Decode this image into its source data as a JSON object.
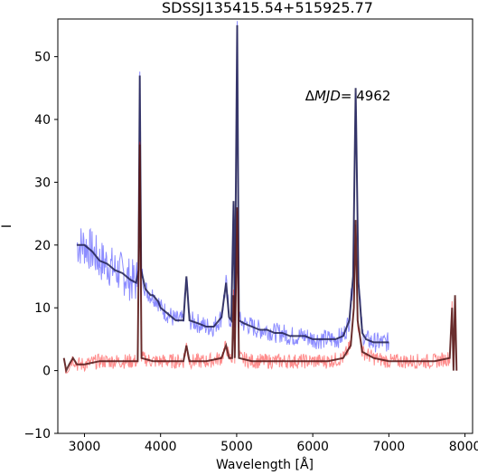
{
  "chart_data": {
    "type": "line",
    "title": "SDSSJ135415.54+515925.77",
    "xlabel": "Wavelength [Å]",
    "ylabel": "I",
    "xlim": [
      2650,
      8100
    ],
    "ylim": [
      -10,
      56
    ],
    "xticks": [
      3000,
      4000,
      5000,
      6000,
      7000,
      8000
    ],
    "yticks": [
      -10,
      0,
      10,
      20,
      30,
      40,
      50
    ],
    "annotation": {
      "prefix": "Δ",
      "italic": "MJD",
      "suffix": "= 4962",
      "x": 5900,
      "y": 43
    },
    "grid": false,
    "series": [
      {
        "color": "#0000ff",
        "smooth_color": "#202050",
        "x": [
          2900,
          3000,
          3100,
          3200,
          3300,
          3400,
          3500,
          3600,
          3680,
          3710,
          3727,
          3745,
          3800,
          3870,
          3900,
          3969,
          4000,
          4101,
          4200,
          4300,
          4340,
          4380,
          4500,
          4600,
          4700,
          4800,
          4861,
          4900,
          4930,
          4959,
          4975,
          5007,
          5030,
          5100,
          5200,
          5300,
          5400,
          5500,
          5600,
          5700,
          5800,
          5900,
          6000,
          6100,
          6200,
          6300,
          6400,
          6480,
          6530,
          6563,
          6600,
          6650,
          6700,
          6800,
          6900,
          7000
        ],
        "values": [
          20,
          20,
          19,
          17.5,
          17,
          16,
          15.5,
          14.5,
          14,
          16,
          47,
          16,
          13,
          12,
          12,
          11,
          10,
          9,
          8,
          8,
          15,
          8,
          7.5,
          7,
          7,
          8.5,
          14,
          8.5,
          8,
          27,
          8,
          55,
          8,
          7.5,
          7,
          6.5,
          6.5,
          6,
          6,
          5.5,
          5.5,
          5.5,
          5,
          5,
          5,
          5,
          5.5,
          8,
          15,
          45,
          14,
          6,
          5,
          4.5,
          4.5,
          4.5
        ]
      },
      {
        "color": "#ff0000",
        "smooth_color": "#501515",
        "x": [
          2730,
          2760,
          2800,
          2850,
          2900,
          3000,
          3200,
          3400,
          3600,
          3700,
          3727,
          3750,
          3900,
          4100,
          4300,
          4340,
          4380,
          4600,
          4800,
          4861,
          4900,
          4940,
          4959,
          4975,
          5007,
          5030,
          5200,
          5500,
          5800,
          6000,
          6200,
          6400,
          6500,
          6540,
          6563,
          6590,
          6650,
          6800,
          7000,
          7200,
          7400,
          7600,
          7800,
          7830,
          7850,
          7870,
          7890
        ],
        "values": [
          2,
          0,
          1,
          2,
          1,
          1,
          1.5,
          1.5,
          1.5,
          1.5,
          36,
          2,
          1.5,
          1.5,
          1.5,
          4,
          1.5,
          1.5,
          2,
          4,
          2,
          2,
          12,
          2,
          26,
          2,
          1.5,
          1.5,
          1.5,
          1.5,
          1.5,
          2,
          4,
          10,
          24,
          8,
          3,
          2,
          1.5,
          1.5,
          1.5,
          1.5,
          2,
          10,
          0,
          12,
          0
        ]
      }
    ]
  }
}
